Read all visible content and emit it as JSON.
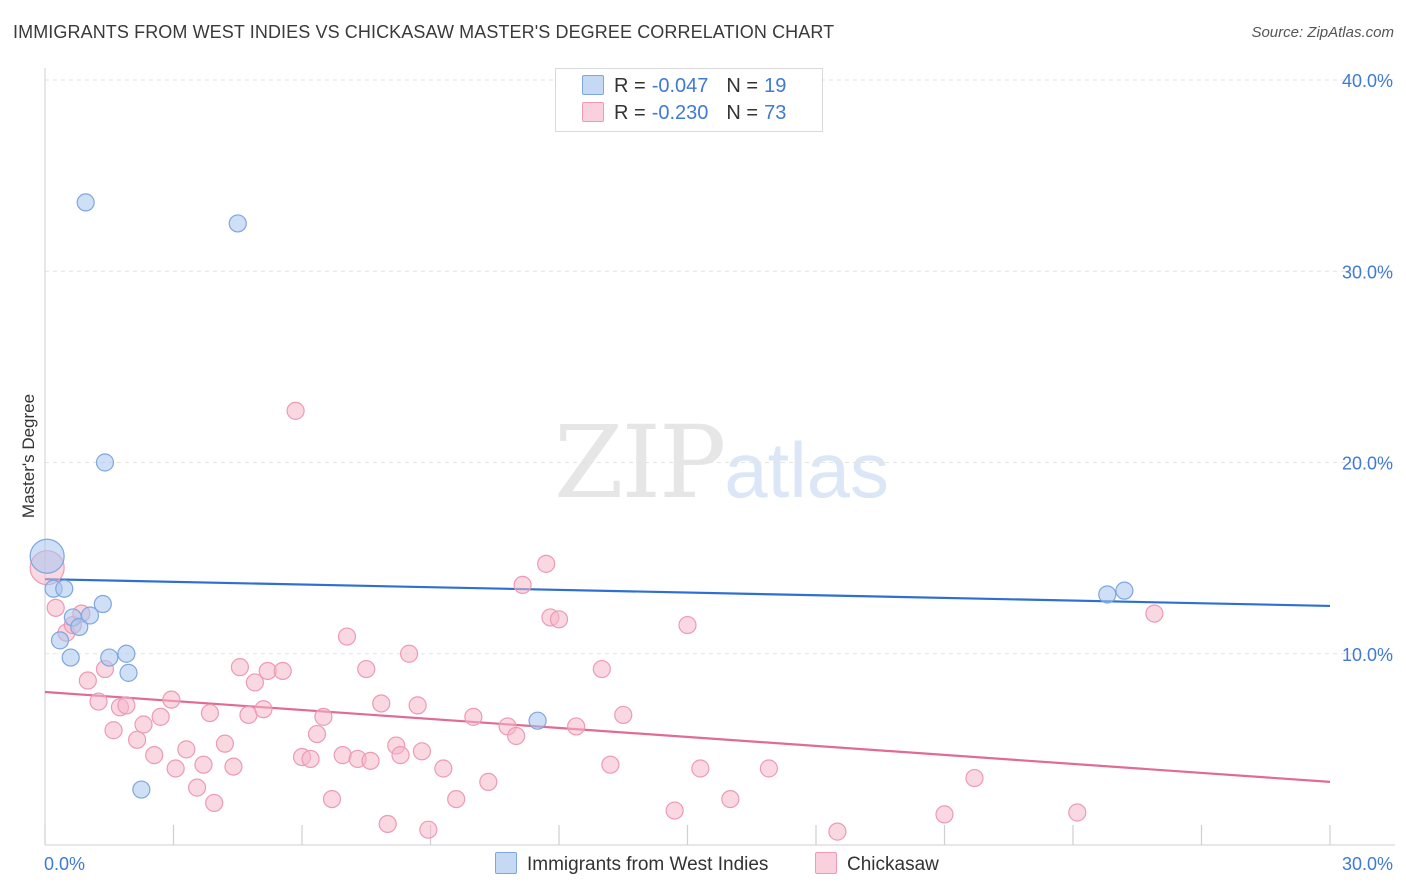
{
  "title": "IMMIGRANTS FROM WEST INDIES VS CHICKASAW MASTER'S DEGREE CORRELATION CHART",
  "source": "Source: ZipAtlas.com",
  "watermark": {
    "zip": "ZIP",
    "atlas": "atlas"
  },
  "legend": {
    "series1": {
      "r_label": "R =",
      "r_value": "-0.047",
      "n_label": "N =",
      "n_value": "19"
    },
    "series2": {
      "r_label": "R =",
      "r_value": "-0.230",
      "n_label": "N =",
      "n_value": "73"
    }
  },
  "bottom_legend": {
    "series1": "Immigrants from West Indies",
    "series2": "Chickasaw"
  },
  "chart_data": {
    "type": "scatter",
    "title": "IMMIGRANTS FROM WEST INDIES VS CHICKASAW MASTER'S DEGREE CORRELATION CHART",
    "ylabel": "Master's Degree",
    "xlim": [
      0,
      30
    ],
    "ylim": [
      0,
      40
    ],
    "x_tick_labels": [
      "0.0%",
      "30.0%"
    ],
    "y_ticks": [
      10,
      20,
      30,
      40
    ],
    "y_tick_labels": [
      "10.0%",
      "20.0%",
      "30.0%",
      "40.0%"
    ],
    "grid": true,
    "colors": {
      "series1": "#a8c6ee",
      "series1_line": "#2f6fd0",
      "series2": "#f4b8cb",
      "series2_line": "#e06b95"
    },
    "series": [
      {
        "name": "Immigrants from West Indies",
        "trend": [
          [
            0,
            13.9
          ],
          [
            30,
            12.5
          ]
        ],
        "points": [
          [
            0.05,
            15.1
          ],
          [
            0.2,
            13.4
          ],
          [
            0.45,
            13.4
          ],
          [
            0.95,
            33.6
          ],
          [
            1.4,
            20.0
          ],
          [
            0.35,
            10.7
          ],
          [
            0.65,
            11.9
          ],
          [
            0.8,
            11.4
          ],
          [
            1.05,
            12.0
          ],
          [
            1.35,
            12.6
          ],
          [
            0.6,
            9.8
          ],
          [
            1.5,
            9.8
          ],
          [
            1.9,
            10.0
          ],
          [
            1.95,
            9.0
          ],
          [
            2.25,
            2.9
          ],
          [
            4.5,
            32.5
          ],
          [
            11.5,
            6.5
          ],
          [
            24.8,
            13.1
          ],
          [
            25.2,
            13.3
          ]
        ]
      },
      {
        "name": "Chickasaw",
        "trend": [
          [
            0,
            8.0
          ],
          [
            30,
            3.3
          ]
        ],
        "points": [
          [
            0.05,
            14.5
          ],
          [
            0.25,
            12.4
          ],
          [
            0.5,
            11.1
          ],
          [
            0.65,
            11.5
          ],
          [
            0.85,
            12.1
          ],
          [
            1.0,
            8.6
          ],
          [
            1.25,
            7.5
          ],
          [
            1.4,
            9.2
          ],
          [
            1.6,
            6.0
          ],
          [
            1.75,
            7.2
          ],
          [
            1.9,
            7.3
          ],
          [
            2.15,
            5.5
          ],
          [
            2.3,
            6.3
          ],
          [
            2.55,
            4.7
          ],
          [
            2.7,
            6.7
          ],
          [
            2.95,
            7.6
          ],
          [
            3.05,
            4.0
          ],
          [
            3.3,
            5.0
          ],
          [
            3.55,
            3.0
          ],
          [
            3.7,
            4.2
          ],
          [
            3.85,
            6.9
          ],
          [
            3.95,
            2.2
          ],
          [
            4.2,
            5.3
          ],
          [
            4.4,
            4.1
          ],
          [
            4.55,
            9.3
          ],
          [
            4.75,
            6.8
          ],
          [
            4.9,
            8.5
          ],
          [
            5.1,
            7.1
          ],
          [
            5.2,
            9.1
          ],
          [
            5.55,
            9.1
          ],
          [
            5.85,
            22.7
          ],
          [
            6.0,
            4.6
          ],
          [
            6.2,
            4.5
          ],
          [
            6.35,
            5.8
          ],
          [
            6.5,
            6.7
          ],
          [
            6.7,
            2.4
          ],
          [
            6.95,
            4.7
          ],
          [
            7.05,
            10.9
          ],
          [
            7.3,
            4.5
          ],
          [
            7.5,
            9.2
          ],
          [
            7.6,
            4.4
          ],
          [
            7.85,
            7.4
          ],
          [
            8.0,
            1.1
          ],
          [
            8.2,
            5.2
          ],
          [
            8.3,
            4.7
          ],
          [
            8.5,
            10.0
          ],
          [
            8.7,
            7.3
          ],
          [
            8.8,
            4.9
          ],
          [
            8.95,
            0.8
          ],
          [
            9.3,
            4.0
          ],
          [
            9.6,
            2.4
          ],
          [
            10.0,
            6.7
          ],
          [
            10.35,
            3.3
          ],
          [
            10.8,
            6.2
          ],
          [
            11.0,
            5.7
          ],
          [
            11.15,
            13.6
          ],
          [
            11.7,
            14.7
          ],
          [
            11.8,
            11.9
          ],
          [
            12.0,
            11.8
          ],
          [
            12.4,
            6.2
          ],
          [
            13.0,
            9.2
          ],
          [
            13.2,
            4.2
          ],
          [
            13.5,
            6.8
          ],
          [
            14.7,
            1.8
          ],
          [
            15.0,
            11.5
          ],
          [
            15.3,
            4.0
          ],
          [
            16.0,
            2.4
          ],
          [
            16.9,
            4.0
          ],
          [
            18.5,
            0.7
          ],
          [
            21.0,
            1.6
          ],
          [
            21.7,
            3.5
          ],
          [
            24.1,
            1.7
          ],
          [
            25.9,
            12.1
          ]
        ]
      }
    ]
  }
}
